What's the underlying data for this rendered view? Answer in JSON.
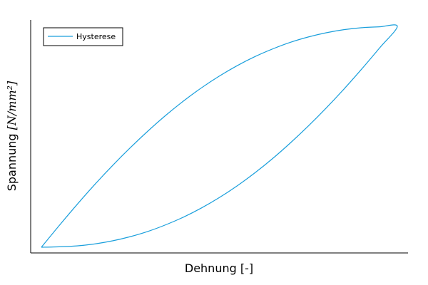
{
  "chart_data": {
    "type": "line",
    "title": "",
    "xlabel": "Dehnung [-]",
    "ylabel_text": "Spannung ",
    "ylabel_unit": "[N/mm²]",
    "xlim": [
      0,
      1
    ],
    "ylim": [
      -0.03,
      1.03
    ],
    "xticks": [],
    "yticks": [],
    "grid": false,
    "legend": {
      "position": "top-left"
    },
    "series": [
      {
        "name": "Hysterese",
        "color": "#1a9fdc",
        "x": [
          0,
          0.05,
          0.1,
          0.15,
          0.2,
          0.25,
          0.3,
          0.35,
          0.4,
          0.45,
          0.5,
          0.55,
          0.6,
          0.65,
          0.7,
          0.75,
          0.8,
          0.85,
          0.9,
          0.95,
          1.0,
          0.95,
          0.9,
          0.85,
          0.8,
          0.75,
          0.7,
          0.65,
          0.6,
          0.55,
          0.5,
          0.45,
          0.4,
          0.35,
          0.3,
          0.25,
          0.2,
          0.15,
          0.1,
          0.05,
          0
        ],
        "y": [
          0,
          0.098,
          0.193,
          0.284,
          0.37,
          0.451,
          0.527,
          0.598,
          0.663,
          0.722,
          0.775,
          0.822,
          0.863,
          0.898,
          0.928,
          0.952,
          0.971,
          0.985,
          0.994,
          0.998,
          1.0,
          0.902,
          0.807,
          0.716,
          0.63,
          0.549,
          0.473,
          0.402,
          0.337,
          0.278,
          0.225,
          0.178,
          0.137,
          0.102,
          0.072,
          0.048,
          0.029,
          0.015,
          0.006,
          0.002,
          0
        ]
      }
    ]
  }
}
